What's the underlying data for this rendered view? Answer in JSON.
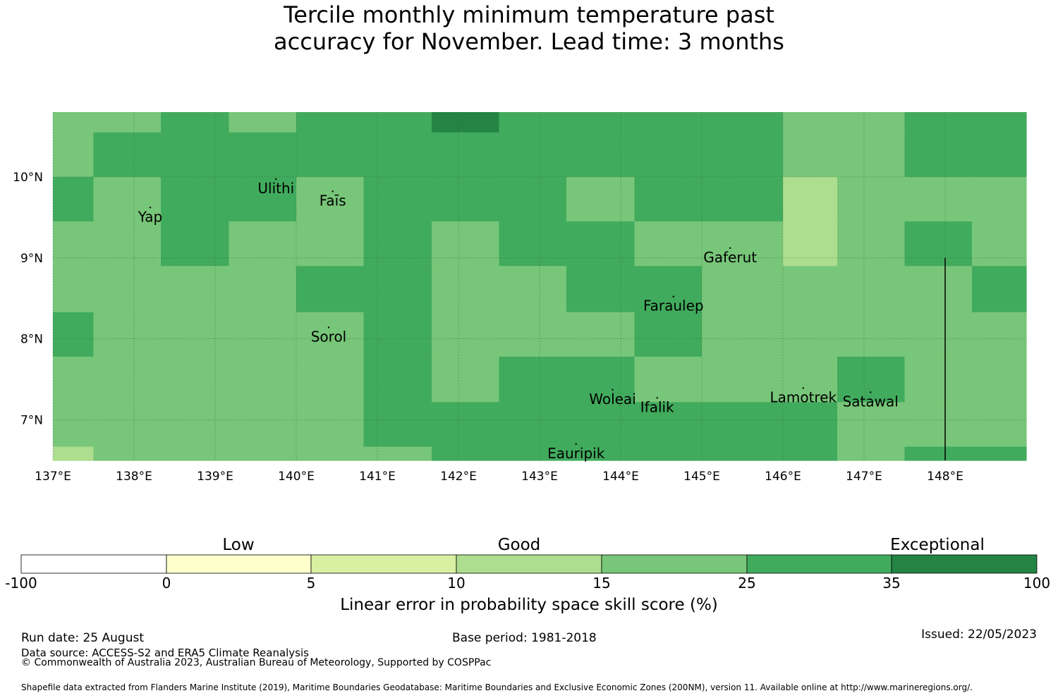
{
  "title_line1": "Tercile monthly minimum temperature past",
  "title_line2": "accuracy for November. Lead time: 3 months",
  "colors": {
    "c_neg": "#ffffff",
    "c_0_5": "#ffffcc",
    "c_5_10": "#d9f0a3",
    "c_10_15": "#addd8e",
    "c_15_25": "#78c679",
    "c_25_35": "#41ab5d",
    "c_35_100": "#238443"
  },
  "map": {
    "lon_range": [
      137,
      149
    ],
    "lat_range": [
      6.5,
      10.8
    ],
    "lat_ticks": [
      {
        "value": 10,
        "label": "10°N"
      },
      {
        "value": 9,
        "label": "9°N"
      },
      {
        "value": 8,
        "label": "8°N"
      },
      {
        "value": 7,
        "label": "7°N"
      }
    ],
    "lon_ticks": [
      {
        "value": 137,
        "label": "137°E"
      },
      {
        "value": 138,
        "label": "138°E"
      },
      {
        "value": 139,
        "label": "139°E"
      },
      {
        "value": 140,
        "label": "140°E"
      },
      {
        "value": 141,
        "label": "141°E"
      },
      {
        "value": 142,
        "label": "142°E"
      },
      {
        "value": 143,
        "label": "143°E"
      },
      {
        "value": 144,
        "label": "144°E"
      },
      {
        "value": 145,
        "label": "145°E"
      },
      {
        "value": 146,
        "label": "146°E"
      },
      {
        "value": 147,
        "label": "147°E"
      },
      {
        "value": 148,
        "label": "148°E"
      }
    ],
    "cell_colors": [
      "#78c679",
      "#41ab5d",
      "#238443",
      "#addd8e"
    ],
    "rows": [
      {
        "lat": [
          10.55,
          10.8
        ],
        "spans": [
          [
            137,
            138.33,
            0
          ],
          [
            138.33,
            139.17,
            1
          ],
          [
            139.17,
            140,
            0
          ],
          [
            140,
            141.67,
            1
          ],
          [
            141.67,
            142.5,
            2
          ],
          [
            142.5,
            146,
            1
          ],
          [
            146,
            147.5,
            0
          ],
          [
            147.5,
            149,
            1
          ]
        ]
      },
      {
        "lat": [
          10.0,
          10.55
        ],
        "spans": [
          [
            137,
            137.5,
            0
          ],
          [
            137.5,
            146,
            1
          ],
          [
            146,
            147.5,
            0
          ],
          [
            147.5,
            149,
            1
          ]
        ]
      },
      {
        "lat": [
          9.45,
          10.0
        ],
        "spans": [
          [
            137,
            137.5,
            1
          ],
          [
            137.5,
            138.33,
            0
          ],
          [
            138.33,
            140,
            1
          ],
          [
            140,
            140.83,
            0
          ],
          [
            140.83,
            143.33,
            1
          ],
          [
            143.33,
            144.17,
            0
          ],
          [
            144.17,
            146,
            1
          ],
          [
            146,
            146.67,
            3
          ],
          [
            146.67,
            149,
            0
          ]
        ]
      },
      {
        "lat": [
          8.9,
          9.45
        ],
        "spans": [
          [
            137,
            138.33,
            0
          ],
          [
            138.33,
            139.17,
            1
          ],
          [
            139.17,
            140.83,
            0
          ],
          [
            140.83,
            141.67,
            1
          ],
          [
            141.67,
            142.5,
            0
          ],
          [
            142.5,
            144.17,
            1
          ],
          [
            144.17,
            146,
            0
          ],
          [
            146,
            146.67,
            3
          ],
          [
            146.67,
            147.5,
            0
          ],
          [
            147.5,
            148.33,
            1
          ],
          [
            148.33,
            149,
            0
          ]
        ]
      },
      {
        "lat": [
          8.33,
          8.9
        ],
        "spans": [
          [
            137,
            140,
            0
          ],
          [
            140,
            141.67,
            1
          ],
          [
            141.67,
            143.33,
            0
          ],
          [
            143.33,
            145,
            1
          ],
          [
            145,
            148.33,
            0
          ],
          [
            148.33,
            149,
            1
          ]
        ]
      },
      {
        "lat": [
          7.78,
          8.33
        ],
        "spans": [
          [
            137,
            137.5,
            1
          ],
          [
            137.5,
            140.83,
            0
          ],
          [
            140.83,
            141.67,
            1
          ],
          [
            141.67,
            144.17,
            0
          ],
          [
            144.17,
            145,
            1
          ],
          [
            145,
            149,
            0
          ]
        ]
      },
      {
        "lat": [
          7.22,
          7.78
        ],
        "spans": [
          [
            137,
            140.83,
            0
          ],
          [
            140.83,
            141.67,
            1
          ],
          [
            141.67,
            142.5,
            0
          ],
          [
            142.5,
            144.17,
            1
          ],
          [
            144.17,
            146.67,
            0
          ],
          [
            146.67,
            147.5,
            1
          ],
          [
            147.5,
            149,
            0
          ]
        ]
      },
      {
        "lat": [
          7.0,
          7.22
        ],
        "spans": [
          [
            137,
            140.83,
            0
          ],
          [
            140.83,
            146.67,
            1
          ],
          [
            146.67,
            149,
            0
          ]
        ]
      },
      {
        "lat": [
          6.67,
          7.0
        ],
        "spans": [
          [
            137,
            140.83,
            0
          ],
          [
            140.83,
            146.67,
            1
          ],
          [
            146.67,
            149,
            0
          ]
        ]
      },
      {
        "lat": [
          6.5,
          6.67
        ],
        "spans": [
          [
            137,
            137.5,
            3
          ],
          [
            137.5,
            140.83,
            0
          ],
          [
            140.83,
            141.67,
            0
          ],
          [
            141.67,
            146.67,
            1
          ],
          [
            146.67,
            147.5,
            0
          ],
          [
            147.5,
            149,
            1
          ]
        ]
      }
    ],
    "islands": [
      {
        "name": "Ulithi",
        "lon": 139.75,
        "lat": 9.85
      },
      {
        "name": "Faīs",
        "lon": 140.45,
        "lat": 9.7
      },
      {
        "name": "Yap",
        "lon": 138.2,
        "lat": 9.5
      },
      {
        "name": "Gaferut",
        "lon": 145.35,
        "lat": 9.0
      },
      {
        "name": "Faraulep",
        "lon": 144.65,
        "lat": 8.4
      },
      {
        "name": "Sorol",
        "lon": 140.4,
        "lat": 8.02
      },
      {
        "name": "Woleai",
        "lon": 143.9,
        "lat": 7.25
      },
      {
        "name": "Ifalik",
        "lon": 144.45,
        "lat": 7.15
      },
      {
        "name": "Lamotrek",
        "lon": 146.25,
        "lat": 7.27
      },
      {
        "name": "Satawal",
        "lon": 147.08,
        "lat": 7.22
      },
      {
        "name": "Eauripik",
        "lon": 143.45,
        "lat": 6.58
      }
    ]
  },
  "colorbar": {
    "categories": {
      "low": "Low",
      "good": "Good",
      "exceptional": "Exceptional"
    },
    "ticks": [
      "-100",
      "0",
      "5",
      "10",
      "15",
      "25",
      "35",
      "100"
    ],
    "title": "Linear error in probability space skill score (%)"
  },
  "footer": {
    "run_date": "Run date: 25 August",
    "data_source": "Data source: ACCESS-S2 and ERA5 Climate Reanalysis",
    "copyright": "© Commonwealth of Australia 2023, Australian Bureau of Meteorology, Supported by COSPPac",
    "base_period": "Base period: 1981-2018",
    "issued": "Issued: 22/05/2023",
    "shapefile": "Shapefile data extracted from Flanders Marine Institute (2019), Maritime Boundaries Geodatabase: Maritime Boundaries and Exclusive Economic Zones (200NM), version 11. Available online at http://www.marineregions.org/."
  }
}
